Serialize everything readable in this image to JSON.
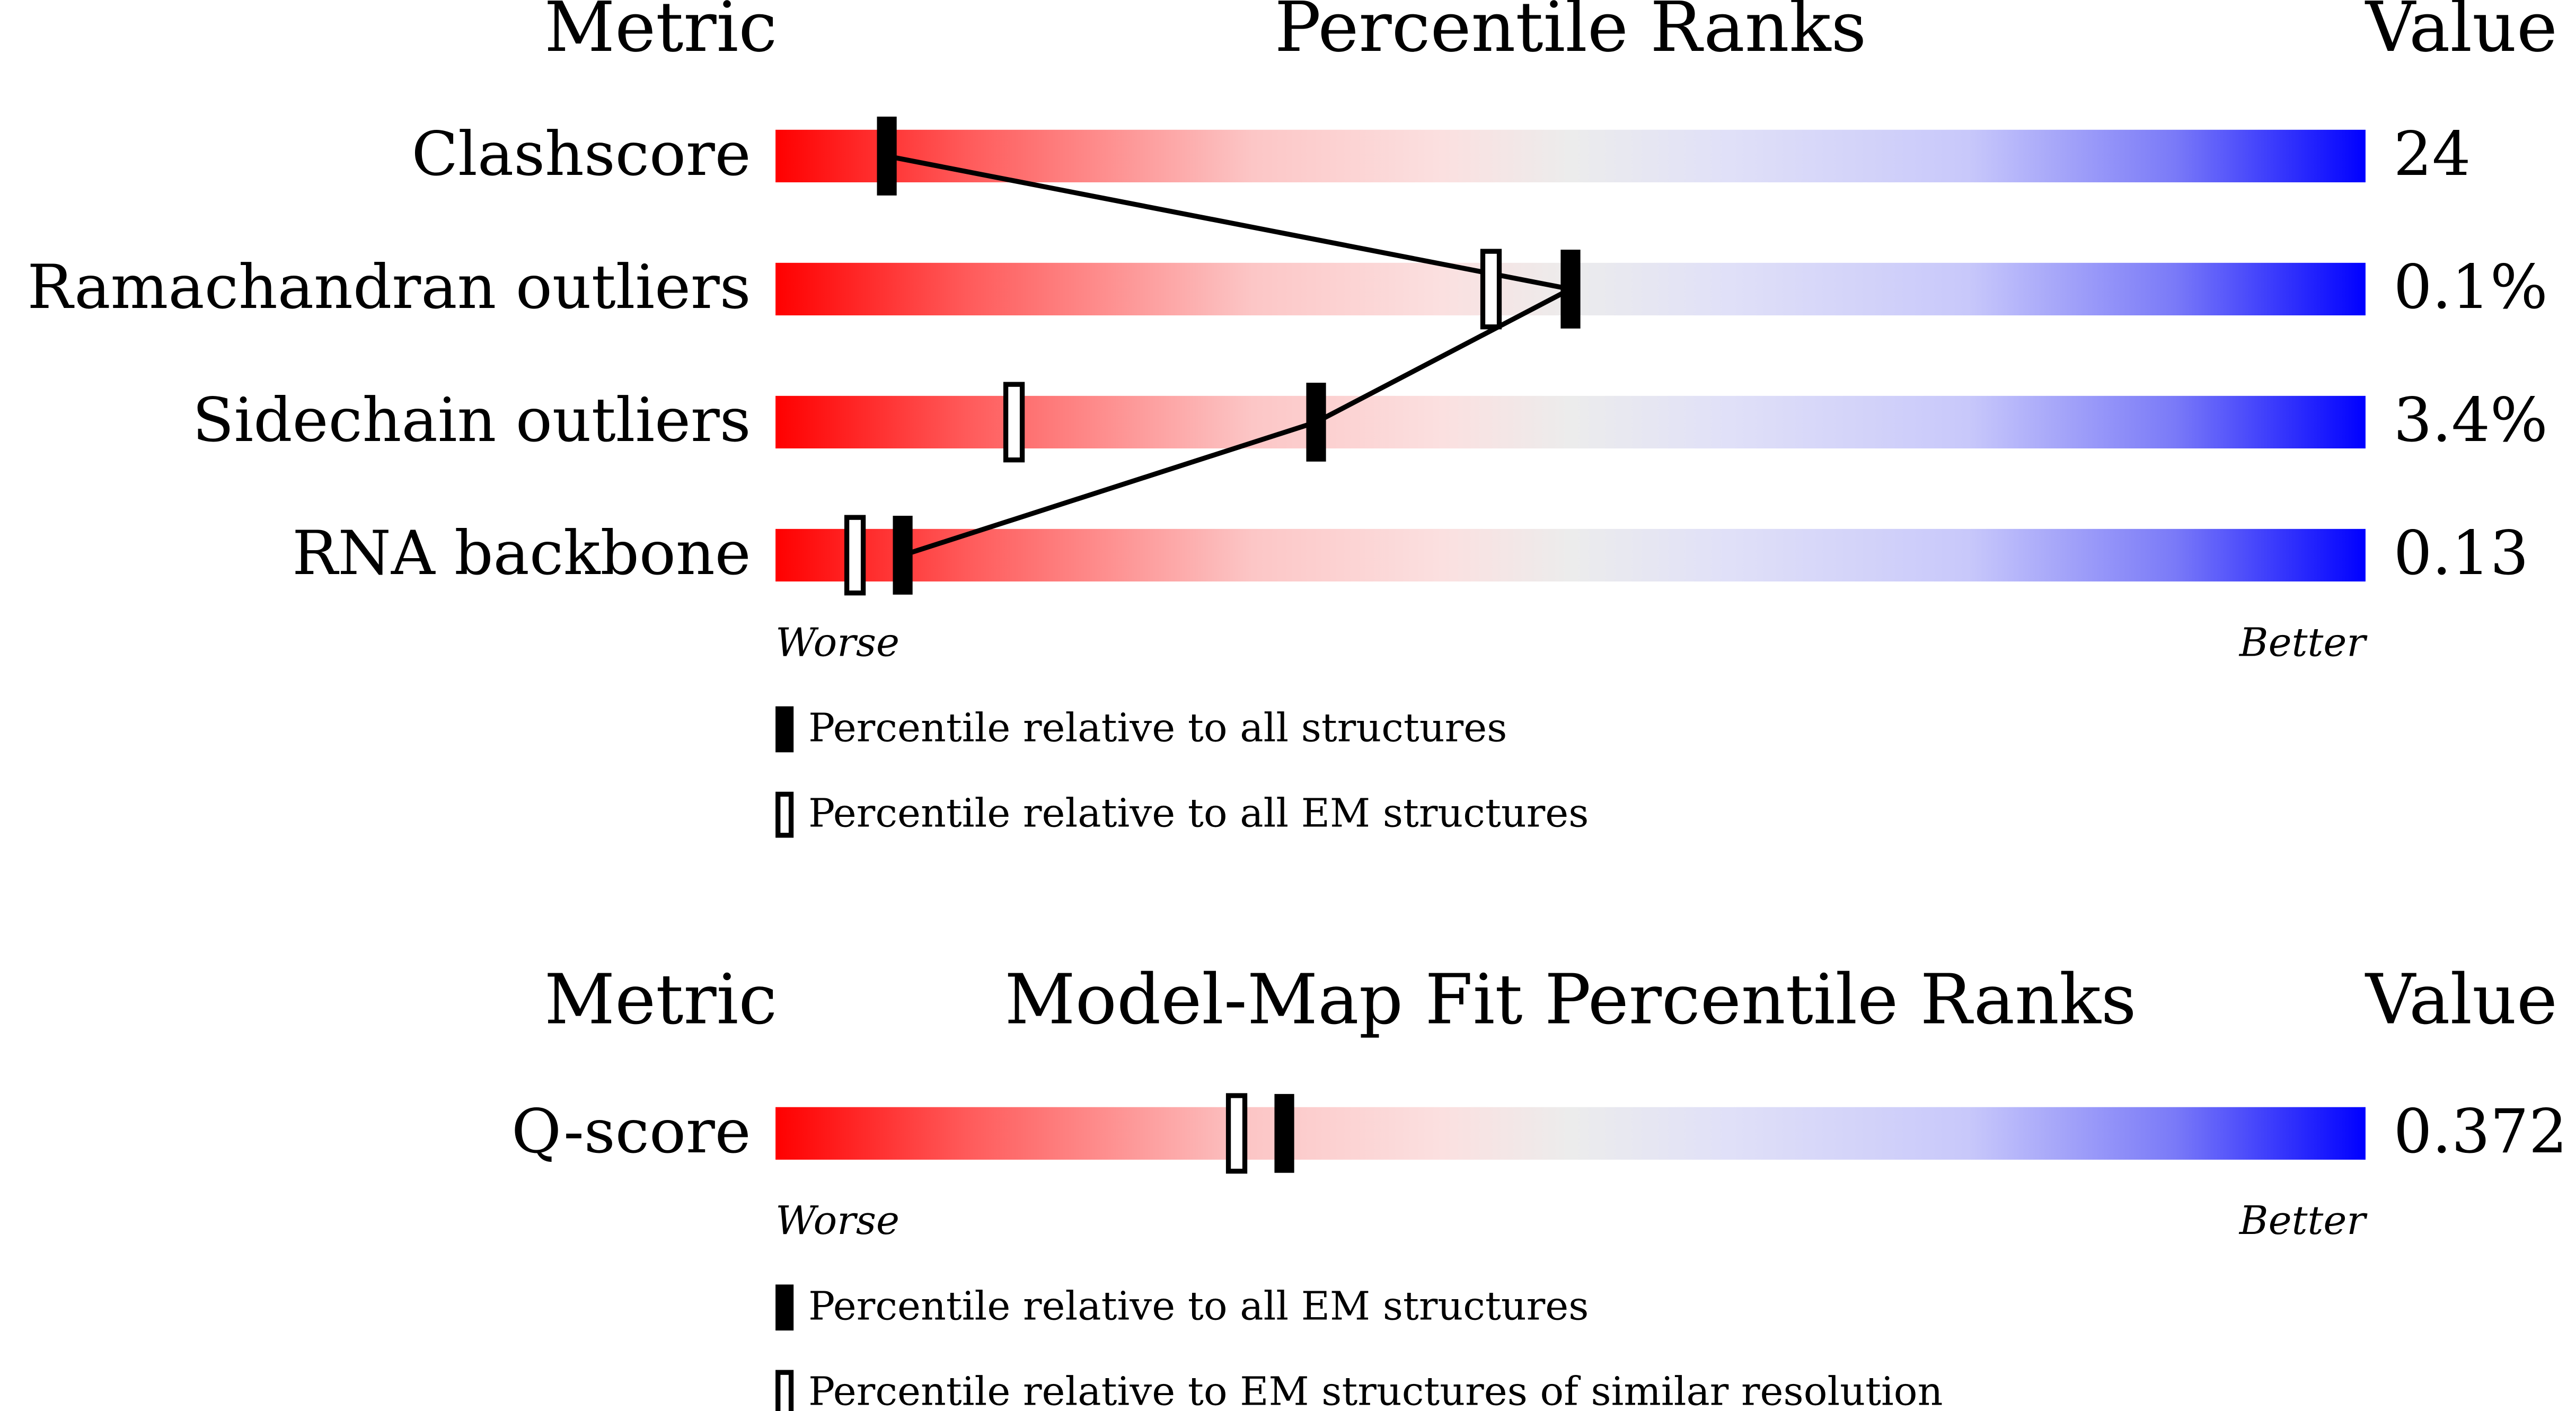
{
  "chart_data": [
    {
      "type": "percentile_slider",
      "metric_header": "Metric",
      "title": "Percentile Ranks",
      "value_header": "Value",
      "categories": [
        "Clashscore",
        "Ramachandran outliers",
        "Sidechain outliers",
        "RNA backbone"
      ],
      "metric_values": [
        "24",
        "0.1%",
        "3.4%",
        "0.13"
      ],
      "xlim": [
        0,
        100
      ],
      "worse_label": "Worse",
      "better_label": "Better",
      "series": [
        {
          "name": "Percentile relative to all structures",
          "color": "#000000",
          "values": [
            7,
            50,
            34,
            8
          ]
        },
        {
          "name": "Percentile relative to all EM structures",
          "color": "#000000",
          "values": [
            null,
            45,
            15,
            5
          ]
        }
      ]
    },
    {
      "type": "percentile_slider",
      "metric_header": "Metric",
      "title": "Model-Map Fit Percentile Ranks",
      "value_header": "Value",
      "categories": [
        "Q-score"
      ],
      "metric_values": [
        "0.372"
      ],
      "xlim": [
        0,
        100
      ],
      "worse_label": "Worse",
      "better_label": "Better",
      "series": [
        {
          "name": "Percentile relative to all EM structures",
          "color": "#000000",
          "values": [
            32
          ]
        },
        {
          "name": "Percentile relative to EM structures of similar resolution",
          "color": "#000000",
          "values": [
            29
          ]
        }
      ]
    }
  ]
}
